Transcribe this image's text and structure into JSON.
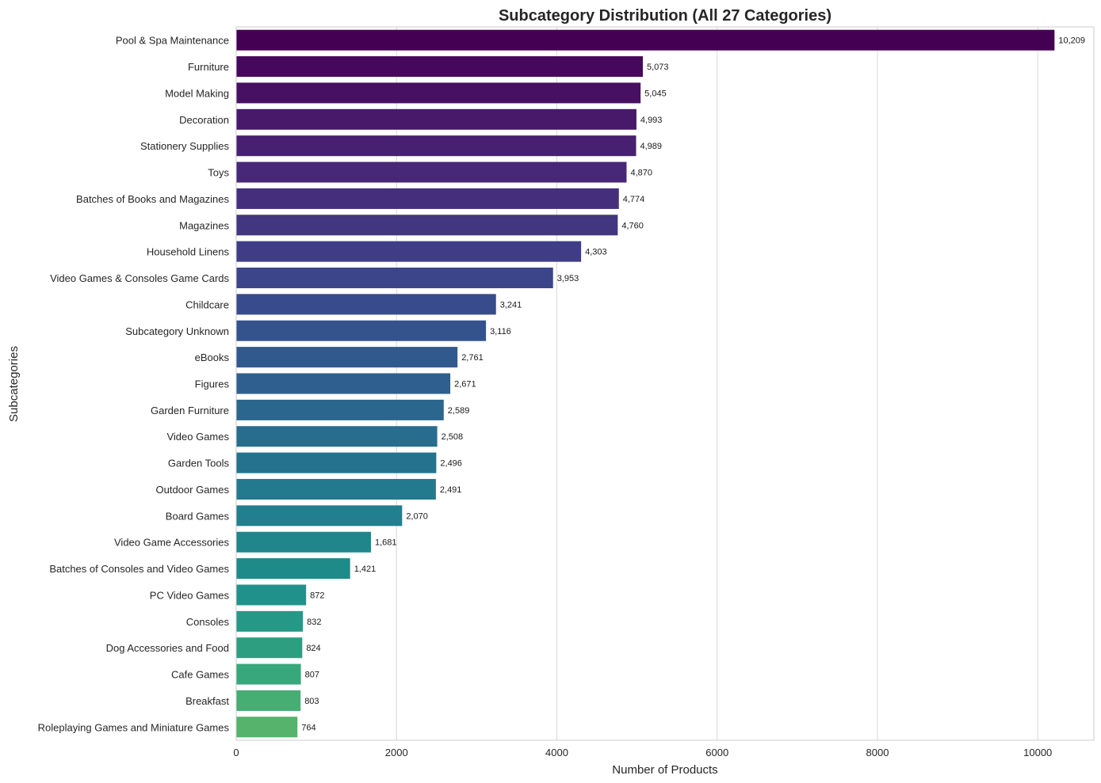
{
  "chart_data": {
    "type": "bar",
    "orientation": "horizontal",
    "title": "Subcategory Distribution (All 27 Categories)",
    "xlabel": "Number of Products",
    "ylabel": "Subcategories",
    "xlim": [
      0,
      10700
    ],
    "xticks": [
      0,
      2000,
      4000,
      6000,
      8000,
      10000
    ],
    "grid": "vertical",
    "legend": "none",
    "palette": "viridis",
    "bar_colors": [
      "#440154",
      "#46085c",
      "#471063",
      "#48186a",
      "#482071",
      "#472777",
      "#452f7d",
      "#423681",
      "#3f3d86",
      "#3c4589",
      "#384b8c",
      "#34538d",
      "#30598e",
      "#2e5f8e",
      "#2b668e",
      "#286d8e",
      "#25728e",
      "#23798e",
      "#217f8e",
      "#20868b",
      "#1f8b89",
      "#21928b",
      "#259886",
      "#2d9f80",
      "#38a77b",
      "#46ad73",
      "#55b36b"
    ],
    "categories": [
      "Pool & Spa Maintenance",
      "Furniture",
      "Model Making",
      "Decoration",
      "Stationery Supplies",
      "Toys",
      "Batches of Books and Magazines",
      "Magazines",
      "Household Linens",
      "Video Games & Consoles Game Cards",
      "Childcare",
      "Subcategory Unknown",
      "eBooks",
      "Figures",
      "Garden Furniture",
      "Video Games",
      "Garden Tools",
      "Outdoor Games",
      "Board Games",
      "Video Game Accessories",
      "Batches of Consoles and Video Games",
      "PC Video Games",
      "Consoles",
      "Dog Accessories and Food",
      "Cafe Games",
      "Breakfast",
      "Roleplaying Games and Miniature Games"
    ],
    "values": [
      10209,
      5073,
      5045,
      4993,
      4989,
      4870,
      4774,
      4760,
      4303,
      3953,
      3241,
      3116,
      2761,
      2671,
      2589,
      2508,
      2496,
      2491,
      2070,
      1681,
      1421,
      872,
      832,
      824,
      807,
      803,
      764
    ],
    "value_labels": [
      "10,209",
      "5,073",
      "5,045",
      "4,993",
      "4,989",
      "4,870",
      "4,774",
      "4,760",
      "4,303",
      "3,953",
      "3,241",
      "3,116",
      "2,761",
      "2,671",
      "2,589",
      "2,508",
      "2,496",
      "2,491",
      "2,070",
      "1,681",
      "1,421",
      "872",
      "832",
      "824",
      "807",
      "803",
      "764"
    ]
  }
}
